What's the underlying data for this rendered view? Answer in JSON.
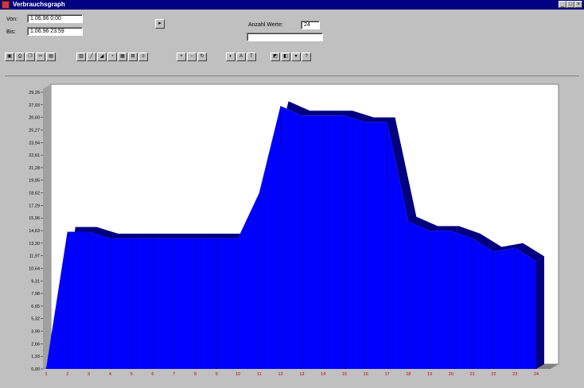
{
  "window": {
    "title": "Verbrauchsgraph",
    "controls": [
      "_",
      "□",
      "×"
    ]
  },
  "form": {
    "from_label": "Von:",
    "from_value": "1.06.96 0:00",
    "to_label": "Bis:",
    "to_value": "1.06.96 23:59",
    "go_button": "▸",
    "count_label": "Anzahl Werte:",
    "count_value": "24",
    "status_text": ""
  },
  "toolbar": {
    "groups": [
      [
        "save-icon",
        "print-icon",
        "copy-icon",
        "cut-icon",
        "paste-icon"
      ],
      [
        "bar-chart-icon",
        "line-chart-icon",
        "area-chart-icon",
        "pie-chart-icon",
        "table-icon",
        "grid-icon",
        "legend-icon"
      ],
      [
        "zoom-in-icon",
        "zoom-out-icon",
        "rotate-icon"
      ],
      [
        "color-icon",
        "font-icon",
        "title-icon"
      ],
      [
        "3d-icon",
        "palette-icon",
        "options-icon",
        "help-icon"
      ]
    ]
  },
  "chart_data": {
    "type": "area",
    "x": [
      1,
      2,
      3,
      4,
      5,
      6,
      7,
      8,
      9,
      10,
      11,
      12,
      13,
      14,
      15,
      16,
      17,
      18,
      19,
      20,
      21,
      22,
      23,
      24
    ],
    "values": [
      0.0,
      14.5,
      14.5,
      13.8,
      13.8,
      13.8,
      13.8,
      13.8,
      13.8,
      13.8,
      18.6,
      27.8,
      26.8,
      26.8,
      26.8,
      26.1,
      26.1,
      15.6,
      14.6,
      14.6,
      13.8,
      12.4,
      12.8,
      11.4
    ],
    "y_ticks": [
      "0,00",
      "1,33",
      "2,66",
      "3,99",
      "5,32",
      "6,65",
      "7,98",
      "9,31",
      "10,64",
      "11,97",
      "13,30",
      "14,63",
      "15,96",
      "17,29",
      "18,62",
      "19,95",
      "21,28",
      "22,61",
      "23,94",
      "25,27",
      "26,60",
      "27,93",
      "29,26"
    ],
    "ylim": [
      0,
      29.26
    ],
    "series_color": "#0000ff",
    "side_color": "#000080",
    "background": "#ffffff",
    "xlabel": "",
    "ylabel": "",
    "title": ""
  }
}
